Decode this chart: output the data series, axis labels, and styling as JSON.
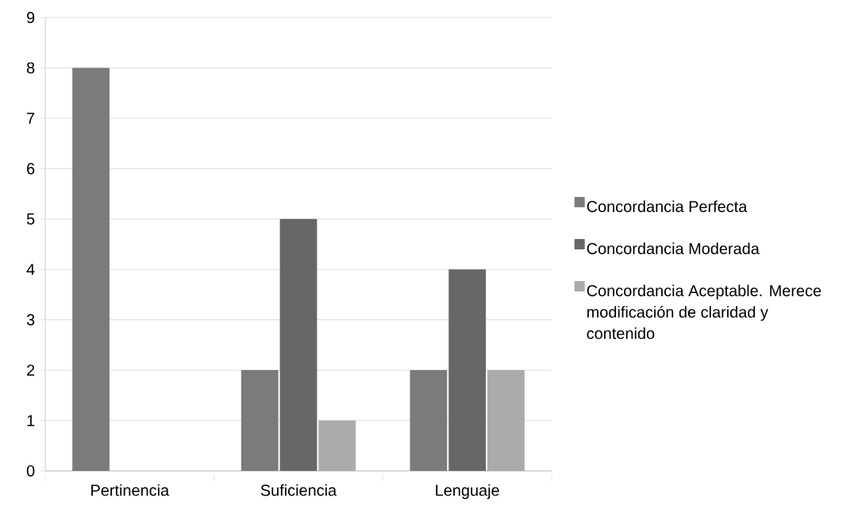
{
  "chart_data": {
    "type": "bar",
    "categories": [
      "Pertinencia",
      "Suficiencia",
      "Lenguaje"
    ],
    "series": [
      {
        "name": "Concordancia Perfecta",
        "color": "#7b7b7b",
        "values": [
          8,
          2,
          2
        ]
      },
      {
        "name": "Concordancia Moderada",
        "color": "#676767",
        "values": [
          0,
          5,
          4
        ]
      },
      {
        "name": "Concordancia Aceptable. Merece modificación de claridad y contenido",
        "color": "#ababab",
        "values": [
          0,
          1,
          2
        ]
      }
    ],
    "ylim": [
      0,
      9
    ],
    "yticks": [
      0,
      1,
      2,
      3,
      4,
      5,
      6,
      7,
      8,
      9
    ],
    "grid": "y",
    "legend": "right"
  }
}
